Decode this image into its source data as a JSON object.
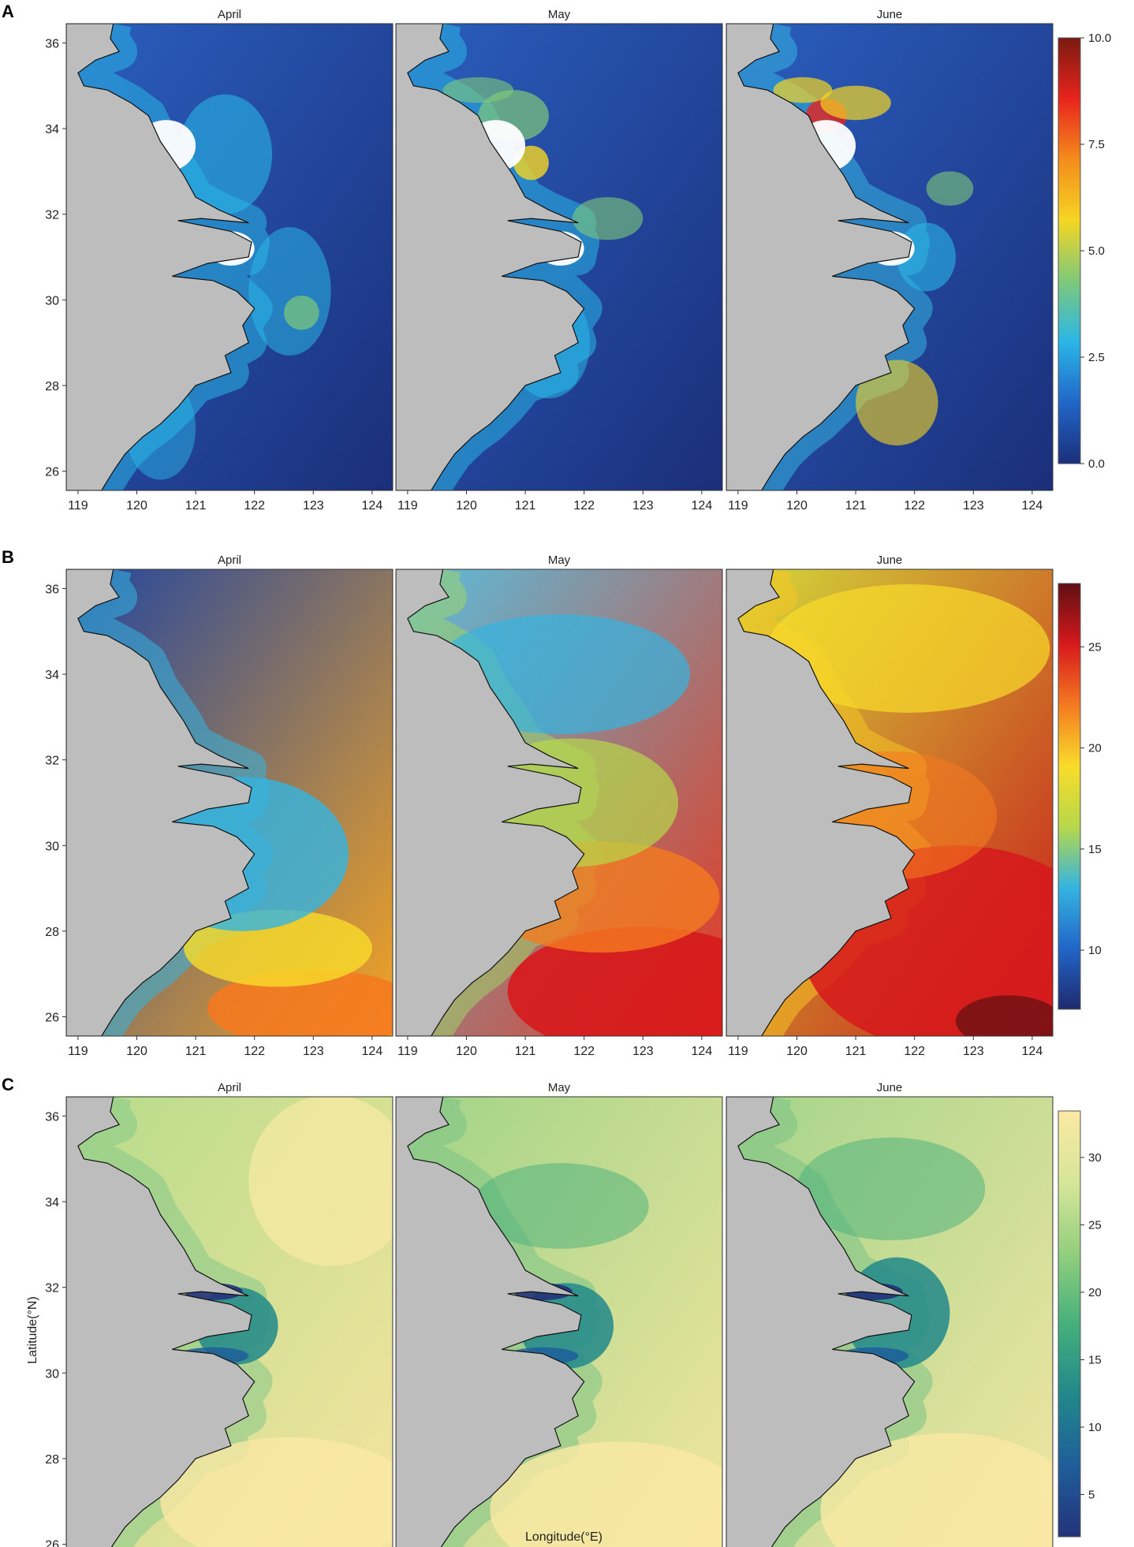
{
  "figure": {
    "months": [
      "April",
      "May",
      "June"
    ],
    "x_ticks": [
      "119",
      "120",
      "121",
      "122",
      "123",
      "124"
    ],
    "y_ticks": [
      "36",
      "34",
      "32",
      "30",
      "28",
      "26"
    ],
    "x_axis_label": "Longitude(°E)",
    "y_axis_label": "Latitude(°N)",
    "land_color": "#bdbdbd",
    "rows": [
      {
        "label": "A",
        "colorbar_ticks": [
          "10.0",
          "7.5",
          "5.0",
          "2.5",
          "0.0"
        ],
        "colorbar_colors": [
          "#7a1a12",
          "#e8241c",
          "#f48c1c",
          "#f5d623",
          "#7fc97a",
          "#2ab6e6",
          "#2166c8",
          "#1b2f7a"
        ]
      },
      {
        "label": "B",
        "colorbar_ticks": [
          "25",
          "20",
          "15",
          "10"
        ],
        "colorbar_colors": [
          "#5e0f12",
          "#d7191c",
          "#f47a20",
          "#f9dc2a",
          "#b7d84a",
          "#35b4e0",
          "#2166c8",
          "#1f2a6e"
        ]
      },
      {
        "label": "C",
        "colorbar_ticks": [
          "30",
          "25",
          "20",
          "15",
          "10",
          "5"
        ],
        "colorbar_colors": [
          "#fae9a4",
          "#d7e69a",
          "#93cf7d",
          "#45b07c",
          "#21888a",
          "#1f5e9a",
          "#24337a"
        ]
      }
    ]
  }
}
